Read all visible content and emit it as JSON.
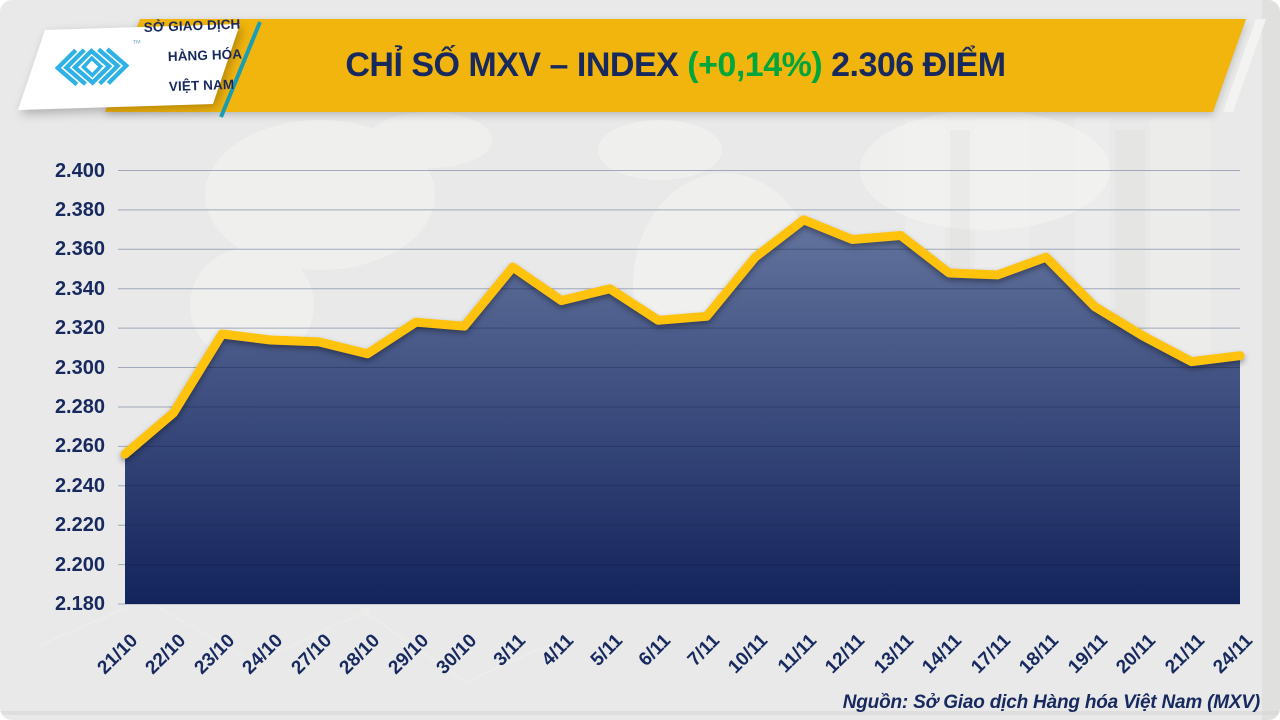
{
  "colors": {
    "background": "#E8E9E8",
    "banner_gold": "#F2B50E",
    "navy_text": "#17295E",
    "green_change": "#00A63C",
    "teal_accent": "#1A9EB5",
    "logo_cyan": "#2EB2E6",
    "line_yellow": "#FFC30E",
    "fill_top": "#63749E",
    "fill_bottom": "#13235C",
    "gridline": "#99A2B6",
    "card_white": "#FFFFFF"
  },
  "header": {
    "logo_card": {
      "line1": "SỞ GIAO DỊCH",
      "line2": "HÀNG HÓA",
      "line3": "VIỆT NAM",
      "trademark": "™"
    },
    "title": {
      "prefix": "CHỈ SỐ MXV – INDEX ",
      "change": "(+0,14%)",
      "suffix": " 2.306 ĐIỂM"
    }
  },
  "chart_data": {
    "type": "area",
    "title": "CHỈ SỐ MXV – INDEX (+0,14%) 2.306 ĐIỂM",
    "unit": "điểm",
    "categories": [
      "21/10",
      "22/10",
      "23/10",
      "24/10",
      "27/10",
      "28/10",
      "29/10",
      "30/10",
      "3/11",
      "4/11",
      "5/11",
      "6/11",
      "7/11",
      "10/11",
      "11/11",
      "12/11",
      "13/11",
      "14/11",
      "17/11",
      "18/11",
      "19/11",
      "20/11",
      "21/11",
      "24/11"
    ],
    "values": [
      2256,
      2277,
      2317,
      2314,
      2313,
      2307,
      2323,
      2321,
      2351,
      2334,
      2340,
      2324,
      2326,
      2356,
      2375,
      2365,
      2367,
      2348,
      2347,
      2356,
      2331,
      2316,
      2303,
      2306
    ],
    "ylim": [
      2180,
      2400
    ],
    "y_step": 20,
    "ytick_labels": [
      "2.180",
      "2.200",
      "2.220",
      "2.240",
      "2.260",
      "2.280",
      "2.300",
      "2.320",
      "2.340",
      "2.360",
      "2.380",
      "2.400"
    ],
    "xlabel": "",
    "ylabel": "",
    "x_label_rotation": -45,
    "grid": true,
    "legend": false
  },
  "footer": {
    "source": "Nguồn: Sở Giao dịch Hàng hóa Việt Nam (MXV)"
  }
}
